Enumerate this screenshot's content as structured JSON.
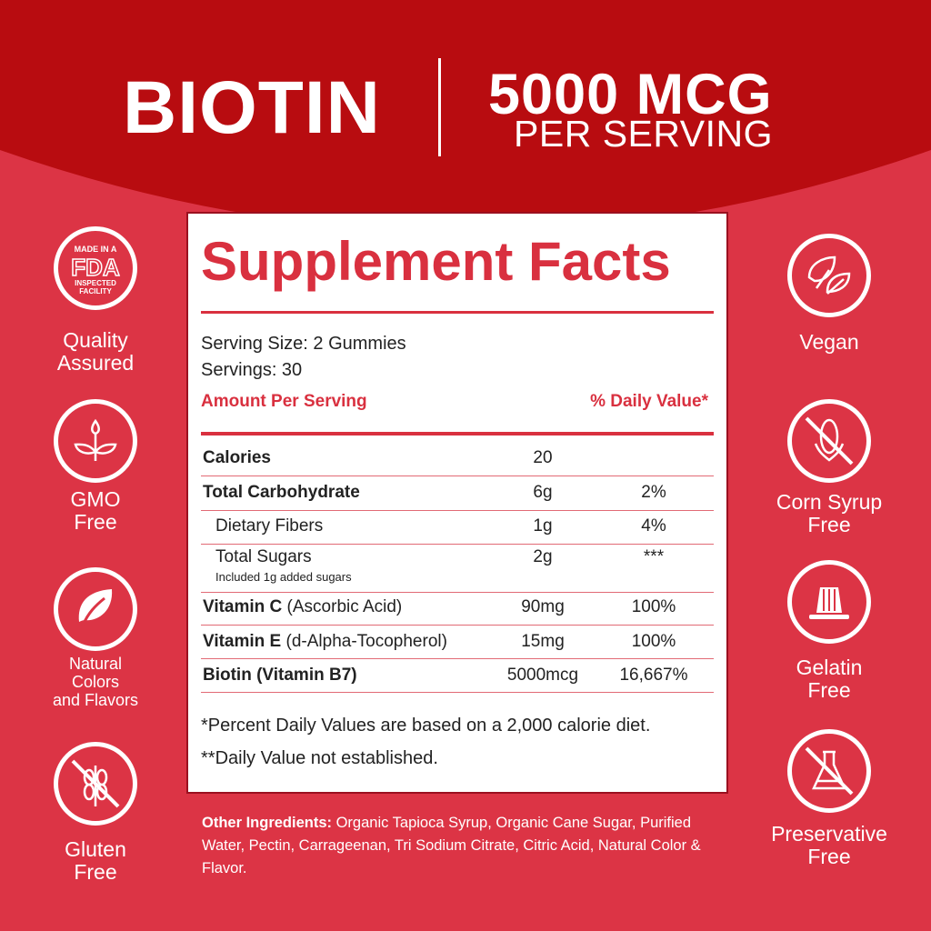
{
  "header": {
    "product": "BIOTIN",
    "dose": "5000 MCG",
    "dose_sub": "PER SERVING"
  },
  "panel": {
    "title": "Supplement Facts",
    "serving_size": "Serving Size: 2 Gummies",
    "servings": "Servings: 30",
    "amount_header": "Amount Per Serving",
    "dv_header": "% Daily Value*",
    "rows": [
      {
        "name": "Calories",
        "amount": "20",
        "dv": ""
      },
      {
        "name": "Total Carbohydrate",
        "amount": "6g",
        "dv": "2%"
      },
      {
        "name": "Dietary Fibers",
        "amount": "1g",
        "dv": "4%"
      },
      {
        "name": "Total Sugars",
        "sub": "Included 1g added sugars",
        "amount": "2g",
        "dv": "***"
      },
      {
        "name": "Vitamin C",
        "detail": " (Ascorbic Acid)",
        "amount": "90mg",
        "dv": "100%"
      },
      {
        "name": "Vitamin E",
        "detail": " (d-Alpha-Tocopherol)",
        "amount": "15mg",
        "dv": "100%"
      },
      {
        "name": "Biotin (Vitamin B7)",
        "amount": "5000mcg",
        "dv": "16,667%"
      }
    ],
    "footnote1": "*Percent Daily Values are based on a 2,000 calorie diet.",
    "footnote2": "**Daily Value not established."
  },
  "ingredients": {
    "label": "Other Ingredients:",
    "text": " Organic Tapioca Syrup, Organic Cane Sugar, Purified Water, Pectin, Carrageenan, Tri Sodium Citrate, Citric Acid, Natural Color & Flavor."
  },
  "badges_left": [
    {
      "icon": "fda-badge-icon",
      "label1": "Quality",
      "label2": "Assured",
      "badge_top": "MADE IN A",
      "badge_mid": "FDA",
      "badge_bot1": "INSPECTED",
      "badge_bot2": "FACILITY"
    },
    {
      "icon": "sprout-icon",
      "label1": "GMO",
      "label2": "Free"
    },
    {
      "icon": "leaf-icon",
      "label1": "Natural",
      "label2": "Colors",
      "label3": "and Flavors"
    },
    {
      "icon": "no-wheat-icon",
      "label1": "Gluten",
      "label2": "Free"
    }
  ],
  "badges_right": [
    {
      "icon": "vegan-leaf-icon",
      "label1": "Vegan"
    },
    {
      "icon": "no-corn-icon",
      "label1": "Corn Syrup",
      "label2": "Free"
    },
    {
      "icon": "gelatin-icon",
      "label1": "Gelatin",
      "label2": "Free"
    },
    {
      "icon": "no-preservative-icon",
      "label1": "Preservative",
      "label2": "Free"
    }
  ],
  "colors": {
    "header": "#b80c10",
    "background": "#dc3445",
    "accent": "#d9303f"
  }
}
